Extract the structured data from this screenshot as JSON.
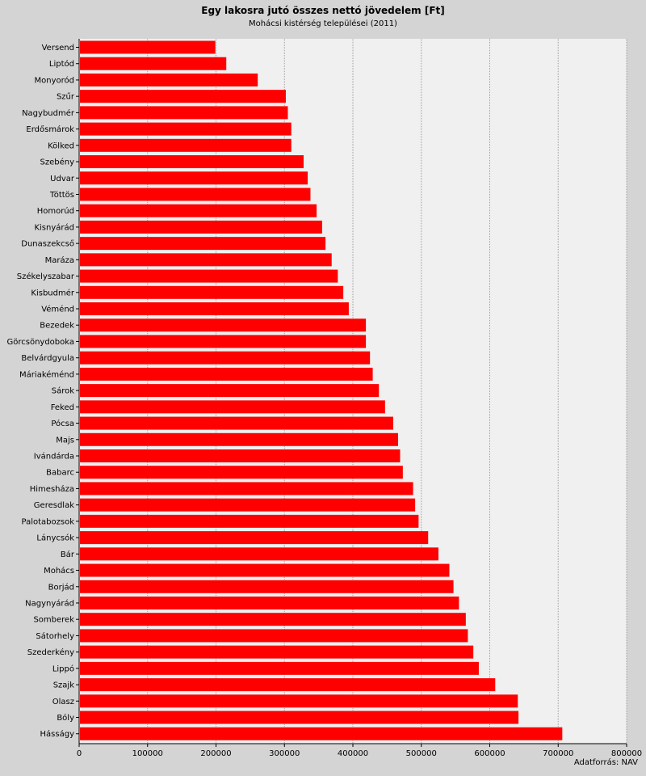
{
  "chart_data": {
    "type": "bar",
    "orientation": "horizontal",
    "title": "Egy lakosra jutó összes nettó jövedelem [Ft]",
    "subtitle": "Mohácsi kistérség települései (2011)",
    "source": "Adatforrás: NAV",
    "xlim": [
      0,
      800000
    ],
    "xticks": [
      "0",
      "100000",
      "200000",
      "300000",
      "400000",
      "500000",
      "600000",
      "700000",
      "800000"
    ],
    "grid": true,
    "bar_color": "#ff0000",
    "categories": [
      "Versend",
      "Liptód",
      "Monyoród",
      "Szűr",
      "Nagybudmér",
      "Erdősmárok",
      "Kölked",
      "Szebény",
      "Udvar",
      "Töttös",
      "Homorúd",
      "Kisnyárád",
      "Dunaszekcső",
      "Maráza",
      "Székelyszabar",
      "Kisbudmér",
      "Véménd",
      "Bezedek",
      "Görcsönydoboka",
      "Belvárdgyula",
      "Máriakéménd",
      "Sárok",
      "Feked",
      "Pócsa",
      "Majs",
      "Ivándárda",
      "Babarc",
      "Himesháza",
      "Geresdlak",
      "Palotabozsok",
      "Lánycsók",
      "Bár",
      "Mohács",
      "Borjád",
      "Nagynyárád",
      "Somberek",
      "Sátorhely",
      "Szederkény",
      "Lippó",
      "Szajk",
      "Olasz",
      "Bóly",
      "Hásságy"
    ],
    "values": [
      199000,
      215000,
      261000,
      302000,
      305000,
      310000,
      310000,
      328000,
      334000,
      338000,
      347000,
      355000,
      360000,
      369000,
      378000,
      386000,
      394000,
      419000,
      419000,
      425000,
      429000,
      438000,
      447000,
      459000,
      466000,
      469000,
      473000,
      488000,
      491000,
      496000,
      510000,
      525000,
      541000,
      547000,
      555000,
      565000,
      568000,
      576000,
      584000,
      608000,
      641000,
      642000,
      706000
    ]
  }
}
